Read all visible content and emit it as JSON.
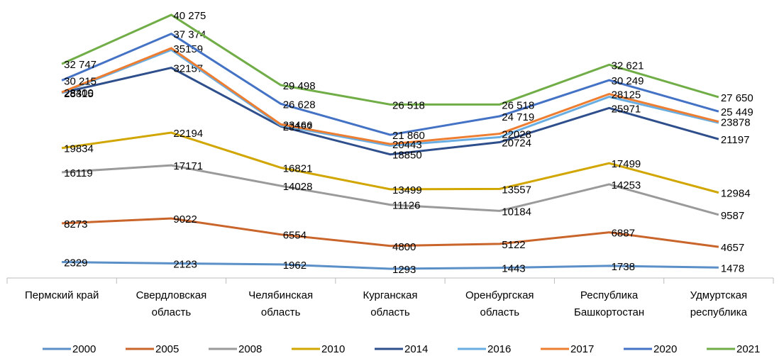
{
  "chart_data": {
    "type": "line",
    "categories": [
      "Пермский край",
      "Свердловская область",
      "Челябинская область",
      "Курганская область",
      "Оренбургская область",
      "Республика Башкортостан",
      "Удмуртская республика"
    ],
    "series": [
      {
        "name": "2000",
        "color": "#5b8fc7",
        "values": [
          2329,
          2123,
          1962,
          1293,
          1443,
          1738,
          1478
        ]
      },
      {
        "name": "2005",
        "color": "#c9642a",
        "values": [
          8273,
          9022,
          6554,
          4800,
          5122,
          6887,
          4657
        ]
      },
      {
        "name": "2008",
        "color": "#9a9a9a",
        "values": [
          16119,
          17171,
          14028,
          11126,
          10184,
          14253,
          9587
        ]
      },
      {
        "name": "2010",
        "color": "#d1a600",
        "values": [
          19834,
          22194,
          16821,
          13499,
          13557,
          17499,
          12984
        ]
      },
      {
        "name": "2014",
        "color": "#2e4f8c",
        "values": [
          28315,
          32157,
          23157,
          18850,
          20724,
          25971,
          21197
        ]
      },
      {
        "name": "2016",
        "color": "#69aee2",
        "values": [
          28300,
          34900,
          23300,
          20200,
          21500,
          27700,
          23700
        ],
        "data_labels": false
      },
      {
        "name": "2017",
        "color": "#ed7d31",
        "values": [
          28400,
          35159,
          23466,
          20443,
          22028,
          28125,
          23878
        ]
      },
      {
        "name": "2020",
        "color": "#4472c4",
        "values": [
          30215,
          37374,
          26628,
          21860,
          24719,
          30249,
          25449
        ],
        "value_labels": [
          "30 215",
          "37 374",
          "26 628",
          "21 860",
          "24 719",
          "30 249",
          "25 449"
        ]
      },
      {
        "name": "2021",
        "color": "#70ad47",
        "values": [
          32747,
          40275,
          29498,
          26518,
          26518,
          32621,
          27650
        ],
        "value_labels": [
          "32 747",
          "40 275",
          "29 498",
          "26 518",
          "26 518",
          "32 621",
          "27 650"
        ]
      }
    ],
    "legend": "bottom"
  }
}
